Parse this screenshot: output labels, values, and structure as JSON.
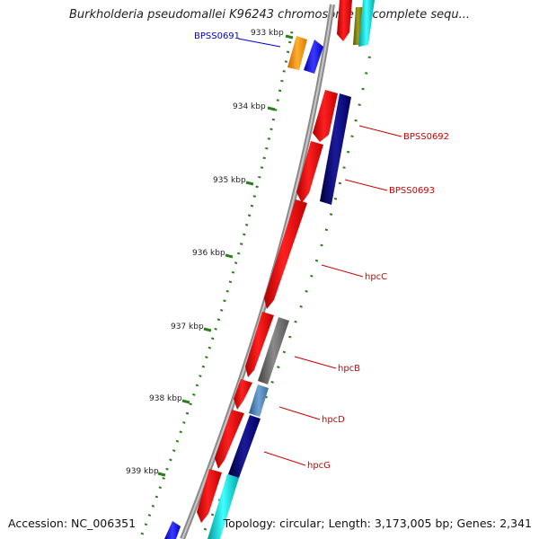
{
  "title": "Burkholderia pseudomallei K96243 chromosome 2, complete sequ...",
  "footer": {
    "accession": "Accession: NC_006351",
    "summary": "Topology: circular; Length: 3,173,005 bp; Genes: 2,341"
  },
  "ruler": [
    {
      "label": "933 kbp",
      "kbp": 933
    },
    {
      "label": "934 kbp",
      "kbp": 934
    },
    {
      "label": "935 kbp",
      "kbp": 935
    },
    {
      "label": "936 kbp",
      "kbp": 936
    },
    {
      "label": "937 kbp",
      "kbp": 937
    },
    {
      "label": "938 kbp",
      "kbp": 938
    },
    {
      "label": "939 kbp",
      "kbp": 939
    }
  ],
  "gene_labels": [
    {
      "label": "BPSS0691",
      "color": "#0000cc"
    },
    {
      "label": "BPSS0692",
      "color": "#cc0000"
    },
    {
      "label": "BPSS0693",
      "color": "#cc0000"
    },
    {
      "label": "hpcC",
      "color": "#cc0000"
    },
    {
      "label": "hpcB",
      "color": "#cc0000"
    },
    {
      "label": "hpcD",
      "color": "#cc0000"
    },
    {
      "label": "hpcG",
      "color": "#cc0000"
    }
  ],
  "colors": {
    "backbone": "#8a8a8a",
    "tick": "#2e7d1e",
    "cds": "#ff0000",
    "orange": "#ff9900",
    "blue": "#0000ff",
    "navy": "#000080",
    "grey": "#707070",
    "steel": "#4682b4",
    "cyan": "#00cccc",
    "olive": "#808000"
  }
}
